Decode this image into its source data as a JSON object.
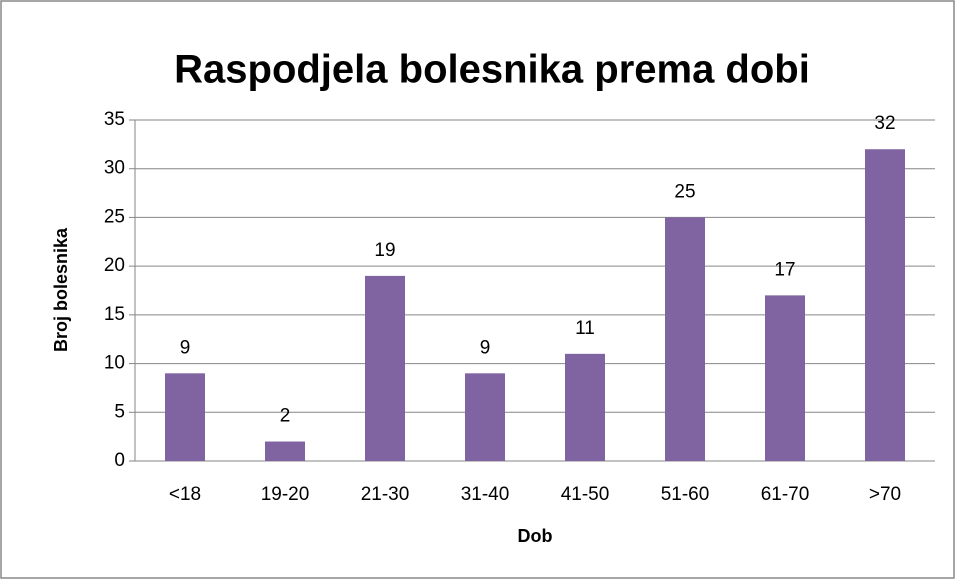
{
  "chart_data": {
    "type": "bar",
    "title": "Raspodjela bolesnika prema dobi",
    "x_label": "Dob",
    "y_label": "Broj bolesnika",
    "categories": [
      "<18",
      "19-20",
      "21-30",
      "31-40",
      "41-50",
      "51-60",
      "61-70",
      ">70"
    ],
    "values": [
      9,
      2,
      19,
      9,
      11,
      25,
      17,
      32
    ],
    "color": "#8064a2",
    "ylim": [
      0,
      35
    ],
    "yticks": [
      0,
      5,
      10,
      15,
      20,
      25,
      30,
      35
    ],
    "grid": true
  }
}
